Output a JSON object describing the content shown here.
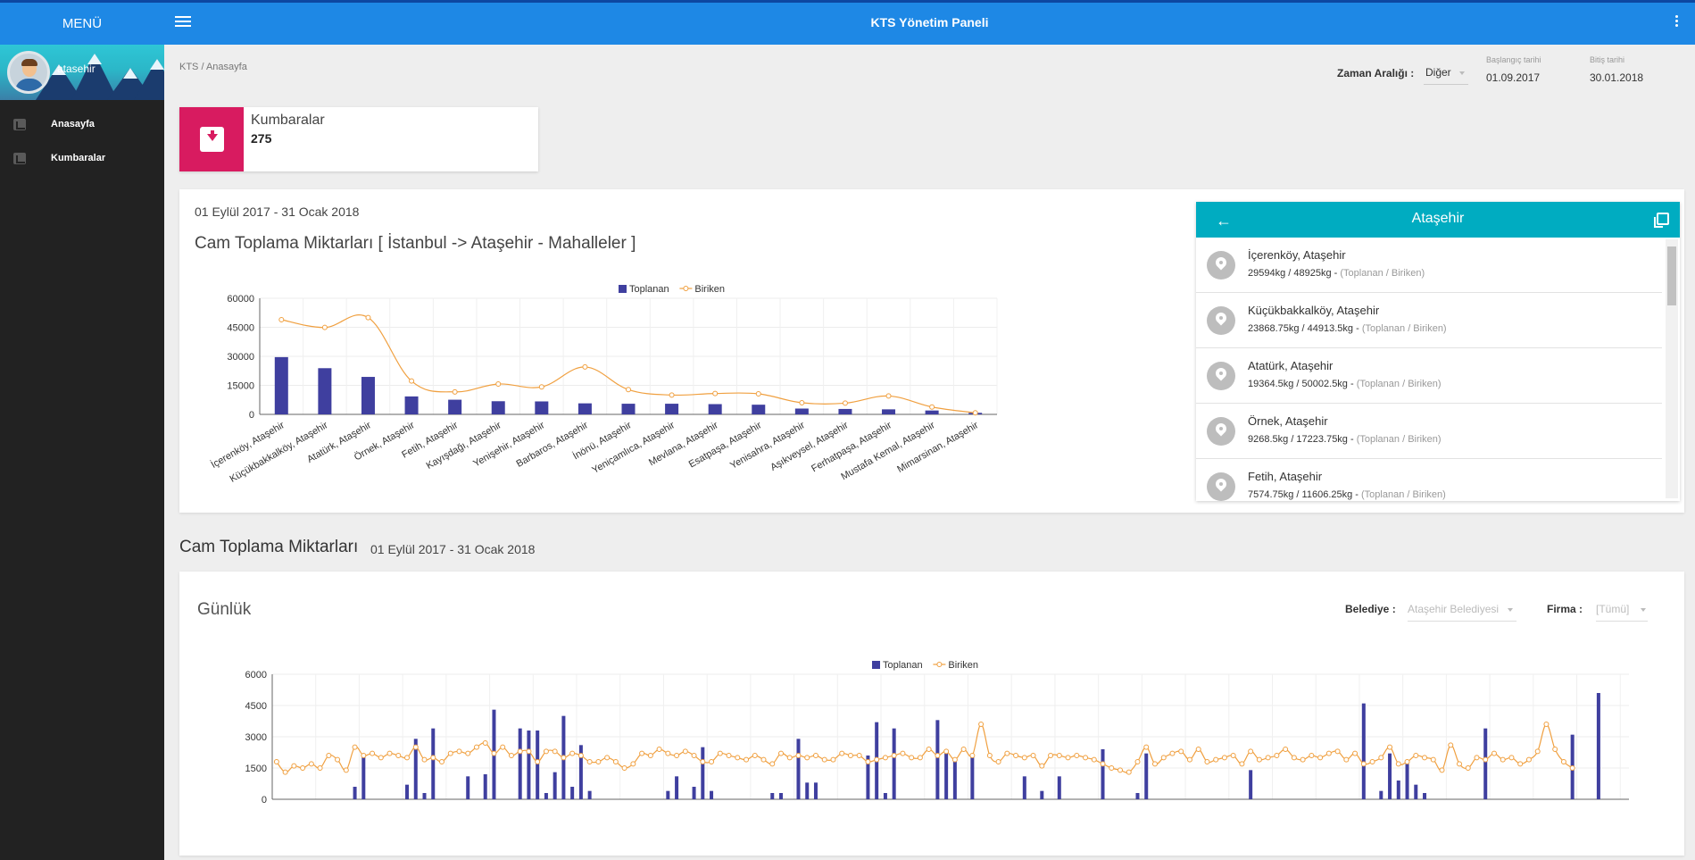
{
  "sidebar": {
    "menu_label": "MENÜ",
    "username": "atasehir",
    "items": [
      {
        "label": "Anasayfa",
        "icon": "bar-chart-icon"
      },
      {
        "label": "Kumbaralar",
        "icon": "archive-icon"
      }
    ]
  },
  "header": {
    "title": "KTS Yönetim Paneli"
  },
  "breadcrumb": "KTS / Anasayfa",
  "date_filter": {
    "range_label": "Zaman Aralığı :",
    "range_value": "Diğer",
    "start_label": "Başlangıç tarihi",
    "start_value": "01.09.2017",
    "end_label": "Bitiş tarihi",
    "end_value": "30.01.2018"
  },
  "kumbaralar_card": {
    "title": "Kumbaralar",
    "count": "275"
  },
  "panel1": {
    "date_range": "01 Eylül 2017 - 31 Ocak 2018",
    "title": "Cam Toplama Miktarları [ İstanbul -> Ataşehir - Mahalleler ]"
  },
  "list_panel": {
    "title": "Ataşehir",
    "suffix": "(Toplanan / Biriken)",
    "items": [
      {
        "name": "İçerenköy, Ataşehir",
        "values": "29594kg / 48925kg"
      },
      {
        "name": "Küçükbakkalköy, Ataşehir",
        "values": "23868.75kg / 44913.5kg"
      },
      {
        "name": "Atatürk, Ataşehir",
        "values": "19364.5kg / 50002.5kg"
      },
      {
        "name": "Örnek, Ataşehir",
        "values": "9268.5kg / 17223.75kg"
      },
      {
        "name": "Fetih, Ataşehir",
        "values": "7574.75kg / 11606.25kg"
      }
    ]
  },
  "section2": {
    "title": "Cam Toplama Miktarları",
    "date_range": "01 Eylül 2017 - 31 Ocak 2018",
    "panel_title": "Günlük",
    "belediye_label": "Belediye :",
    "belediye_value": "Ataşehir Belediyesi",
    "firma_label": "Firma :",
    "firma_value": "[Tümü]"
  },
  "colors": {
    "primary": "#1e88e5",
    "accent": "#d81b60",
    "teal": "#00acc1",
    "bar": "#3f3f9f",
    "line": "#f0a040"
  },
  "chart_data": [
    {
      "type": "bar",
      "title": "",
      "legend": [
        "Toplanan",
        "Biriken"
      ],
      "legend_position": "top",
      "categories": [
        "İçerenköy, Ataşehir",
        "Küçükbakkalköy, Ataşehir",
        "Atatürk, Ataşehir",
        "Örnek, Ataşehir",
        "Fetih, Ataşehir",
        "Kayışdağı, Ataşehir",
        "Yenişehir, Ataşehir",
        "Barbaros, Ataşehir",
        "İnönü, Ataşehir",
        "Yeniçamlıca, Ataşehir",
        "Mevlana, Ataşehir",
        "Esatpaşa, Ataşehir",
        "Yenisahra, Ataşehir",
        "Aşıkveysel, Ataşehir",
        "Ferhatpaşa, Ataşehir",
        "Mustafa Kemal, Ataşehir",
        "Mimarsinan, Ataşehir"
      ],
      "series": [
        {
          "name": "Toplanan",
          "type": "bar",
          "values": [
            29594,
            23869,
            19365,
            9269,
            7575,
            6800,
            6700,
            5700,
            5500,
            5500,
            5300,
            5000,
            3000,
            2800,
            2600,
            2000,
            800
          ]
        },
        {
          "name": "Biriken",
          "type": "line",
          "values": [
            48925,
            44914,
            50003,
            17224,
            11606,
            15700,
            14200,
            24500,
            12800,
            10000,
            10800,
            10600,
            6000,
            5800,
            9500,
            3800,
            800
          ]
        }
      ],
      "ylim": [
        0,
        60000
      ],
      "yticks": [
        0,
        15000,
        30000,
        45000,
        60000
      ],
      "grid": true
    },
    {
      "type": "bar",
      "title": "",
      "legend": [
        "Toplanan",
        "Biriken"
      ],
      "legend_position": "top",
      "x_count": 150,
      "series": [
        {
          "name": "Toplanan",
          "type": "bar",
          "values": [
            0,
            0,
            0,
            0,
            0,
            0,
            0,
            0,
            0,
            600,
            2100,
            0,
            0,
            0,
            0,
            700,
            2900,
            300,
            3400,
            0,
            0,
            0,
            1100,
            0,
            1200,
            4300,
            0,
            0,
            3400,
            3300,
            3300,
            300,
            1300,
            4000,
            600,
            2600,
            400,
            0,
            0,
            0,
            0,
            0,
            0,
            0,
            0,
            400,
            1100,
            0,
            600,
            2500,
            400,
            0,
            0,
            0,
            0,
            0,
            0,
            300,
            300,
            0,
            2900,
            800,
            800,
            0,
            0,
            0,
            0,
            0,
            2100,
            3700,
            300,
            3400,
            0,
            0,
            0,
            0,
            3800,
            2200,
            1800,
            0,
            2100,
            0,
            0,
            0,
            0,
            0,
            1100,
            0,
            400,
            0,
            1100,
            0,
            0,
            0,
            0,
            2400,
            0,
            0,
            0,
            300,
            2200,
            0,
            0,
            0,
            0,
            0,
            0,
            0,
            0,
            0,
            0,
            0,
            1400,
            0,
            0,
            0,
            0,
            0,
            0,
            0,
            0,
            0,
            0,
            0,
            0,
            4600,
            0,
            400,
            2200,
            900,
            1800,
            700,
            300,
            0,
            0,
            0,
            0,
            0,
            0,
            3400,
            0,
            0,
            0,
            0,
            0,
            0,
            0,
            0,
            0,
            3100,
            0,
            0,
            5100,
            0,
            0,
            0
          ]
        },
        {
          "name": "Biriken",
          "type": "line",
          "values": [
            1800,
            1300,
            1600,
            1500,
            1700,
            1500,
            2100,
            1900,
            1400,
            2500,
            2100,
            2200,
            2000,
            2200,
            2100,
            2000,
            2500,
            1900,
            2000,
            1800,
            2200,
            2300,
            2200,
            2500,
            2700,
            2200,
            2500,
            2100,
            2300,
            2300,
            1800,
            2300,
            2300,
            2000,
            2200,
            2100,
            1800,
            1800,
            2000,
            1800,
            1500,
            1700,
            2200,
            2100,
            2400,
            2200,
            2100,
            2300,
            2100,
            1800,
            1800,
            2200,
            2100,
            2000,
            1900,
            2100,
            1900,
            1700,
            2200,
            2000,
            2100,
            2000,
            2100,
            1900,
            1900,
            2200,
            2100,
            2100,
            1800,
            1900,
            2000,
            2100,
            2200,
            2000,
            2000,
            2400,
            2100,
            2300,
            1900,
            2400,
            2100,
            3600,
            2100,
            1800,
            2200,
            2100,
            2000,
            2100,
            1600,
            2100,
            2100,
            2000,
            2100,
            2000,
            1900,
            1700,
            1500,
            1400,
            1300,
            1800,
            2500,
            1700,
            2000,
            2200,
            2300,
            1900,
            2400,
            1800,
            1900,
            2000,
            2100,
            1700,
            2300,
            1900,
            2000,
            2100,
            2400,
            2000,
            1900,
            2100,
            2000,
            2200,
            2300,
            1900,
            2200,
            1700,
            1800,
            2000,
            2500,
            1700,
            1800,
            2100,
            2000,
            1900,
            1400,
            2600,
            1700,
            1500,
            2000,
            1900,
            2200,
            1900,
            2000,
            1700,
            1900,
            2300,
            3600,
            2400,
            1800,
            1500
          ]
        }
      ],
      "ylim": [
        0,
        6000
      ],
      "yticks": [
        0,
        1500,
        3000,
        4500,
        6000
      ],
      "grid": true
    }
  ]
}
